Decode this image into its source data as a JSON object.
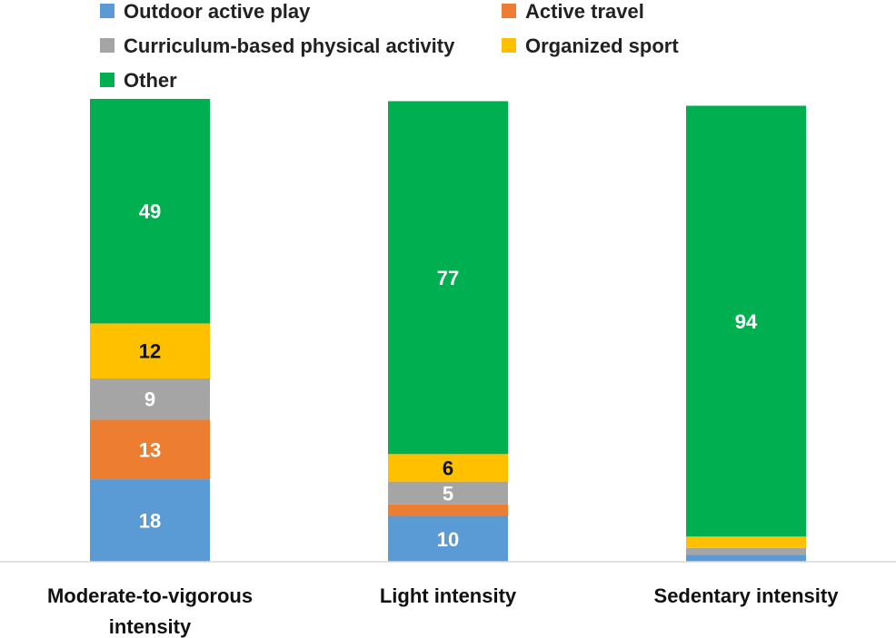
{
  "chart_data": {
    "type": "bar",
    "stacked": true,
    "title": "",
    "xlabel": "",
    "ylabel": "",
    "ylim": [
      0,
      100
    ],
    "grid": false,
    "legend_position": "top",
    "categories": [
      [
        "Moderate-to-vigorous",
        "intensity"
      ],
      [
        "Light intensity"
      ],
      [
        "Sedentary intensity"
      ]
    ],
    "series": [
      {
        "name": "Outdoor active play",
        "color": "#5B9BD5",
        "label_color": "#ffffff",
        "values": [
          18,
          10,
          1.5
        ]
      },
      {
        "name": "Active travel",
        "color": "#ED7D31",
        "label_color": "#ffffff",
        "values": [
          13,
          2.5,
          0
        ]
      },
      {
        "name": "Curriculum-based physical activity",
        "color": "#A5A5A5",
        "label_color": "#ffffff",
        "values": [
          9,
          5,
          1.5
        ]
      },
      {
        "name": "Organized sport",
        "color": "#FFC000",
        "label_color": "#111111",
        "values": [
          12,
          6,
          2.5
        ]
      },
      {
        "name": "Other",
        "color": "#00B050",
        "label_color": "#ffffff",
        "values": [
          49,
          77,
          94
        ]
      }
    ],
    "data_labels": [
      [
        "18",
        "13",
        "9",
        "12",
        "49"
      ],
      [
        "10",
        "",
        "5",
        "6",
        "77"
      ],
      [
        "",
        "",
        "",
        "",
        "94"
      ]
    ]
  }
}
